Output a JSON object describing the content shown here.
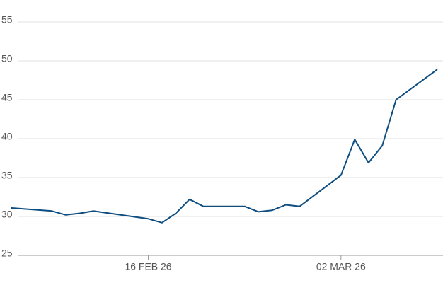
{
  "chart_data": {
    "type": "line",
    "x": [
      "2026-02-06",
      "2026-02-09",
      "2026-02-10",
      "2026-02-11",
      "2026-02-12",
      "2026-02-16",
      "2026-02-17",
      "2026-02-18",
      "2026-02-19",
      "2026-02-20",
      "2026-02-23",
      "2026-02-24",
      "2026-02-25",
      "2026-02-26",
      "2026-02-27",
      "2026-03-02",
      "2026-03-03",
      "2026-03-04",
      "2026-03-05",
      "2026-03-06",
      "2026-03-09"
    ],
    "series": [
      {
        "color": "#0e4d80",
        "values": [
          31.1,
          30.7,
          30.2,
          30.4,
          30.7,
          29.7,
          29.2,
          30.4,
          32.2,
          31.3,
          31.3,
          30.6,
          30.8,
          31.5,
          31.3,
          35.3,
          39.9,
          36.9,
          39.1,
          45.0,
          48.9
        ]
      }
    ],
    "xlim": [
      "2026-02-06",
      "2026-03-09"
    ],
    "xticks": [
      {
        "value": "2026-02-16",
        "label": "16 FEB 26"
      },
      {
        "value": "2026-03-02",
        "label": "02 MAR 26"
      }
    ],
    "ylim": [
      25,
      55
    ],
    "yticks": [
      25,
      30,
      35,
      40,
      45,
      50,
      55
    ],
    "grid": true
  }
}
